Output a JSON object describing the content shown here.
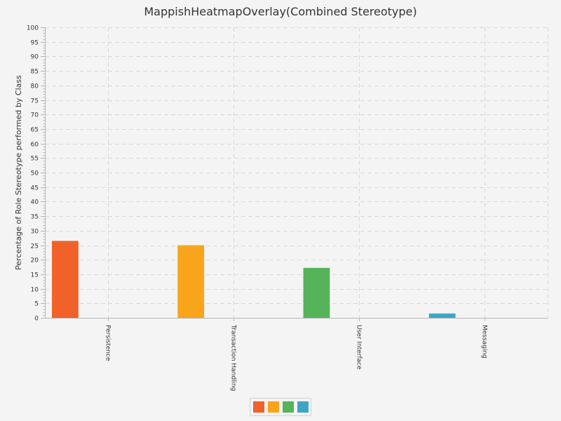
{
  "chart_data": {
    "type": "bar",
    "title": "MappishHeatmapOverlay(Combined Stereotype)",
    "xlabel": "",
    "ylabel": "Percentage of Role Stereotype performed by Class",
    "ylim": [
      0,
      100
    ],
    "ytick_step": 5,
    "categories": [
      "Persistence",
      "Transaction Handling",
      "User Interface",
      "Messaging"
    ],
    "values": [
      26.5,
      25.0,
      17.2,
      1.5
    ],
    "colors": [
      "#f0622a",
      "#f9a51b",
      "#55b359",
      "#3ea6c4"
    ],
    "grid": true,
    "legend": {
      "position": "bottom"
    }
  }
}
